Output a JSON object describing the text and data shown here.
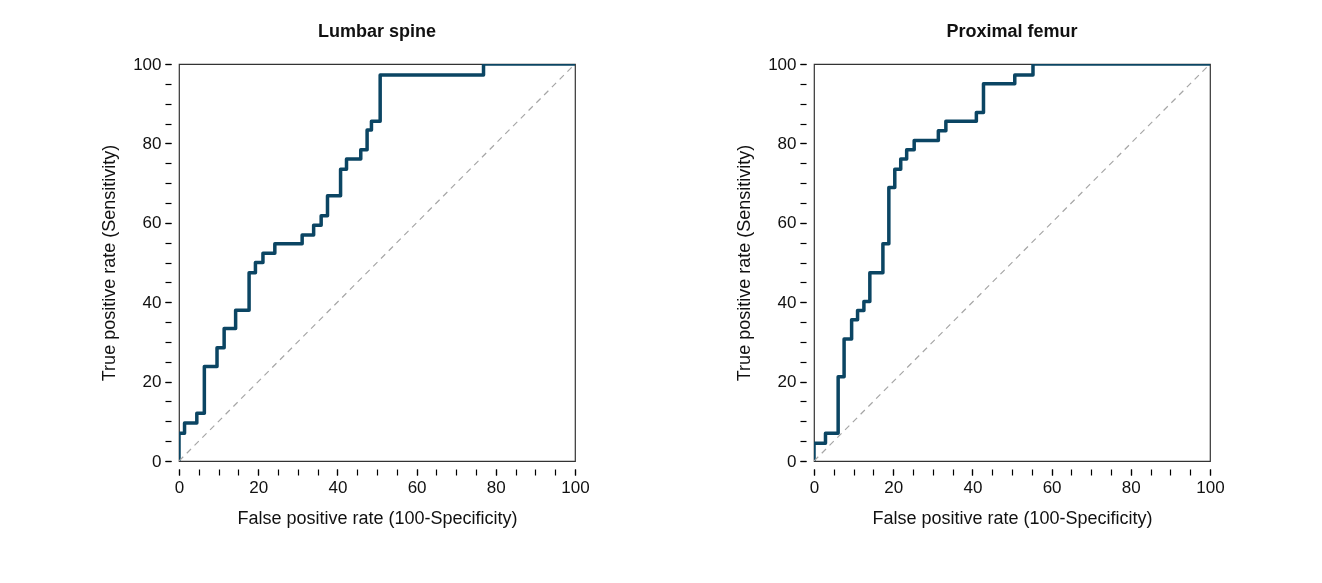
{
  "chart_data": [
    {
      "type": "step",
      "title": "Lumbar spine",
      "xlabel": "False positive rate (100-Specificity)",
      "ylabel": "True positive rate (Sensitivity)",
      "xlim": [
        0,
        100
      ],
      "ylim": [
        0,
        100
      ],
      "xticks": [
        0,
        {
          "value": 5,
          "label": null
        },
        {
          "value": 10,
          "label": null
        },
        {
          "value": 15,
          "label": null
        },
        20,
        {
          "value": 25,
          "label": null
        },
        {
          "value": 30,
          "label": null
        },
        {
          "value": 35,
          "label": null
        },
        40,
        {
          "value": 45,
          "label": null
        },
        {
          "value": 50,
          "label": null
        },
        {
          "value": 55,
          "label": null
        },
        60,
        {
          "value": 65,
          "label": null
        },
        {
          "value": 70,
          "label": null
        },
        {
          "value": 75,
          "label": null
        },
        80,
        {
          "value": 85,
          "label": null
        },
        {
          "value": 90,
          "label": null
        },
        {
          "value": 95,
          "label": null
        },
        100
      ],
      "yticks": [
        0,
        {
          "value": 5,
          "label": null
        },
        {
          "value": 10,
          "label": null
        },
        {
          "value": 15,
          "label": null
        },
        20,
        {
          "value": 25,
          "label": null
        },
        {
          "value": 30,
          "label": null
        },
        {
          "value": 35,
          "label": null
        },
        40,
        {
          "value": 45,
          "label": null
        },
        {
          "value": 50,
          "label": null
        },
        {
          "value": 55,
          "label": null
        },
        60,
        {
          "value": 65,
          "label": null
        },
        {
          "value": 70,
          "label": null
        },
        {
          "value": 75,
          "label": null
        },
        80,
        {
          "value": 85,
          "label": null
        },
        {
          "value": 90,
          "label": null
        },
        {
          "value": 95,
          "label": null
        },
        100
      ],
      "grid": false,
      "series": [
        {
          "color": "#0b4563",
          "x": [
            0,
            0,
            1.4,
            4.5,
            6.4,
            9.6,
            11.4,
            14.3,
            17.7,
            19.3,
            21.2,
            24.2,
            31.1,
            34,
            35.9,
            37.5,
            40.8,
            42.3,
            45.9,
            47.5,
            48.6,
            50.8,
            76.9,
            100
          ],
          "values": [
            0,
            7,
            9.6,
            12,
            23.8,
            28.5,
            33.4,
            38,
            47.4,
            50,
            52.3,
            54.7,
            56.9,
            59.4,
            61.8,
            66.8,
            73.5,
            76.1,
            78.4,
            83.4,
            85.6,
            97.2,
            100,
            100
          ]
        },
        {
          "type": "line",
          "color": "#a6a6a6",
          "line_style": "dashed",
          "x": [
            0,
            100
          ],
          "values": [
            0,
            100
          ]
        }
      ]
    },
    {
      "type": "step",
      "title": "Proximal femur",
      "xlabel": "False positive rate (100-Specificity)",
      "ylabel": "True positive rate (Sensitivity)",
      "xlim": [
        0,
        100
      ],
      "ylim": [
        0,
        100
      ],
      "xticks": [
        0,
        {
          "value": 5,
          "label": null
        },
        {
          "value": 10,
          "label": null
        },
        {
          "value": 15,
          "label": null
        },
        20,
        {
          "value": 25,
          "label": null
        },
        {
          "value": 30,
          "label": null
        },
        {
          "value": 35,
          "label": null
        },
        40,
        {
          "value": 45,
          "label": null
        },
        {
          "value": 50,
          "label": null
        },
        {
          "value": 55,
          "label": null
        },
        60,
        {
          "value": 65,
          "label": null
        },
        {
          "value": 70,
          "label": null
        },
        {
          "value": 75,
          "label": null
        },
        80,
        {
          "value": 85,
          "label": null
        },
        {
          "value": 90,
          "label": null
        },
        {
          "value": 95,
          "label": null
        },
        100
      ],
      "yticks": [
        0,
        {
          "value": 5,
          "label": null
        },
        {
          "value": 10,
          "label": null
        },
        {
          "value": 15,
          "label": null
        },
        20,
        {
          "value": 25,
          "label": null
        },
        {
          "value": 30,
          "label": null
        },
        {
          "value": 35,
          "label": null
        },
        40,
        {
          "value": 45,
          "label": null
        },
        {
          "value": 50,
          "label": null
        },
        {
          "value": 55,
          "label": null
        },
        60,
        {
          "value": 65,
          "label": null
        },
        {
          "value": 70,
          "label": null
        },
        {
          "value": 75,
          "label": null
        },
        80,
        {
          "value": 85,
          "label": null
        },
        {
          "value": 90,
          "label": null
        },
        {
          "value": 95,
          "label": null
        },
        100
      ],
      "grid": false,
      "series": [
        {
          "color": "#0b4563",
          "x": [
            0,
            0,
            2.9,
            6.1,
            7.6,
            9.5,
            11,
            12.6,
            14.1,
            17.4,
            18.9,
            20.4,
            21.9,
            23.4,
            25.3,
            31.4,
            33.3,
            41,
            42.8,
            50.7,
            55.3,
            100
          ],
          "values": [
            0,
            4.5,
            7,
            21.2,
            30.7,
            35.6,
            37.9,
            40.2,
            47.4,
            54.7,
            68.9,
            73.5,
            76.1,
            78.4,
            80.7,
            83.2,
            85.6,
            87.8,
            95,
            97.2,
            100,
            100
          ]
        },
        {
          "type": "line",
          "color": "#a6a6a6",
          "line_style": "dashed",
          "x": [
            0,
            100
          ],
          "values": [
            0,
            100
          ]
        }
      ]
    }
  ]
}
